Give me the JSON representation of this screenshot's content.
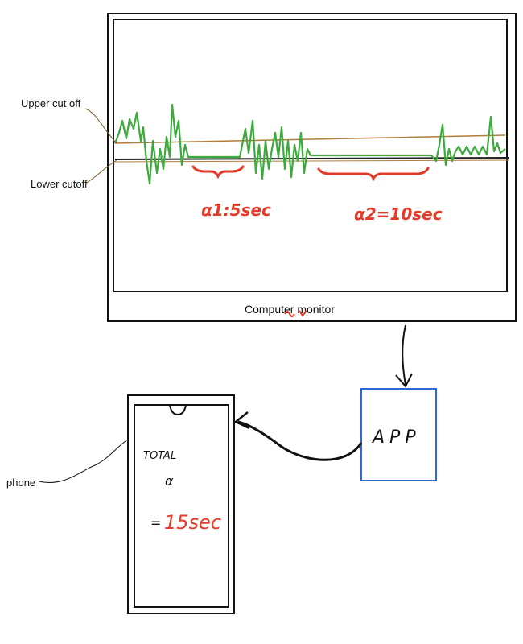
{
  "labels": {
    "upper_cutoff": "Upper cut off",
    "lower_cutoff": "Lower cutoff",
    "monitor": "Computer monitor",
    "phone": "phone",
    "app": "APP"
  },
  "intervals": [
    {
      "label": "α1:5sec",
      "duration": 5
    },
    {
      "label": "α2=10sec",
      "duration": 10
    }
  ],
  "phone_screen": {
    "line1": "TOTAL",
    "line2": "α",
    "eq": "=",
    "value": "15sec"
  },
  "colors": {
    "signal": "#3daa3d",
    "upper_line": "#b07d3a",
    "lower_line": "#222222",
    "annotation": "#e23b2a",
    "app_border": "#2f66d8",
    "ink": "#111111"
  }
}
